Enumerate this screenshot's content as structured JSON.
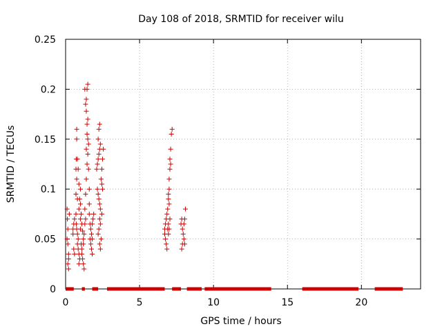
{
  "chart_data": {
    "type": "scatter",
    "title": "Day 108 of 2018, SRMTID for receiver wilu",
    "xlabel": "GPS time / hours",
    "ylabel": "SRMTID / TECUs",
    "xlim": [
      0,
      24
    ],
    "ylim": [
      0,
      0.25
    ],
    "xticks": [
      0,
      5,
      10,
      15,
      20
    ],
    "yticks": [
      0,
      0.05,
      0.1,
      0.15,
      0.2,
      0.25
    ],
    "xtick_labels": [
      "0",
      "5",
      "10",
      "15",
      "20"
    ],
    "ytick_labels": [
      "0",
      "0.05",
      "0.1",
      "0.15",
      "0.2",
      "0.25"
    ],
    "grid": true,
    "marker": "+",
    "color": "#cc0000",
    "zero_value_segments": [
      [
        0.0,
        0.55
      ],
      [
        1.1,
        1.3
      ],
      [
        1.8,
        2.2
      ],
      [
        2.8,
        6.7
      ],
      [
        7.2,
        7.8
      ],
      [
        8.2,
        9.2
      ],
      [
        9.4,
        13.9
      ],
      [
        16.0,
        19.8
      ],
      [
        20.9,
        22.8
      ]
    ],
    "points": [
      [
        0.1,
        0.08
      ],
      [
        0.12,
        0.07
      ],
      [
        0.15,
        0.06
      ],
      [
        0.1,
        0.05
      ],
      [
        0.15,
        0.045
      ],
      [
        0.2,
        0.035
      ],
      [
        0.2,
        0.03
      ],
      [
        0.15,
        0.025
      ],
      [
        0.2,
        0.02
      ],
      [
        0.25,
        0.075
      ],
      [
        0.5,
        0.06
      ],
      [
        0.55,
        0.065
      ],
      [
        0.6,
        0.07
      ],
      [
        0.5,
        0.055
      ],
      [
        0.55,
        0.04
      ],
      [
        0.6,
        0.035
      ],
      [
        0.7,
        0.12
      ],
      [
        0.72,
        0.13
      ],
      [
        0.75,
        0.11
      ],
      [
        0.7,
        0.095
      ],
      [
        0.75,
        0.16
      ],
      [
        0.8,
        0.09
      ],
      [
        0.7,
        0.075
      ],
      [
        0.72,
        0.065
      ],
      [
        0.75,
        0.06
      ],
      [
        0.8,
        0.055
      ],
      [
        0.85,
        0.05
      ],
      [
        0.8,
        0.045
      ],
      [
        0.85,
        0.04
      ],
      [
        0.9,
        0.035
      ],
      [
        0.95,
        0.03
      ],
      [
        0.9,
        0.025
      ],
      [
        1.0,
        0.07
      ],
      [
        1.0,
        0.06
      ],
      [
        0.95,
        0.09
      ],
      [
        1.0,
        0.1
      ],
      [
        1.05,
        0.045
      ],
      [
        1.1,
        0.04
      ],
      [
        1.1,
        0.035
      ],
      [
        1.15,
        0.03
      ],
      [
        1.2,
        0.025
      ],
      [
        1.25,
        0.02
      ],
      [
        0.75,
        0.15
      ],
      [
        0.8,
        0.13
      ],
      [
        0.85,
        0.12
      ],
      [
        0.9,
        0.105
      ],
      [
        0.9,
        0.08
      ],
      [
        1.0,
        0.085
      ],
      [
        1.05,
        0.075
      ],
      [
        1.1,
        0.065
      ],
      [
        1.15,
        0.058
      ],
      [
        1.2,
        0.05
      ],
      [
        1.2,
        0.045
      ],
      [
        1.25,
        0.055
      ],
      [
        1.3,
        0.065
      ],
      [
        1.35,
        0.07
      ],
      [
        1.3,
        0.08
      ],
      [
        1.35,
        0.095
      ],
      [
        1.4,
        0.11
      ],
      [
        1.45,
        0.125
      ],
      [
        1.4,
        0.14
      ],
      [
        1.45,
        0.155
      ],
      [
        1.5,
        0.17
      ],
      [
        1.35,
        0.185
      ],
      [
        1.4,
        0.19
      ],
      [
        1.45,
        0.2
      ],
      [
        1.5,
        0.205
      ],
      [
        1.4,
        0.178
      ],
      [
        1.45,
        0.165
      ],
      [
        1.5,
        0.15
      ],
      [
        1.55,
        0.145
      ],
      [
        1.5,
        0.135
      ],
      [
        1.55,
        0.12
      ],
      [
        1.6,
        0.1
      ],
      [
        1.6,
        0.085
      ],
      [
        1.3,
        0.2
      ],
      [
        1.6,
        0.075
      ],
      [
        1.65,
        0.065
      ],
      [
        1.7,
        0.06
      ],
      [
        1.75,
        0.055
      ],
      [
        1.8,
        0.05
      ],
      [
        1.7,
        0.045
      ],
      [
        1.75,
        0.04
      ],
      [
        1.8,
        0.035
      ],
      [
        1.65,
        0.05
      ],
      [
        1.8,
        0.065
      ],
      [
        1.85,
        0.07
      ],
      [
        1.9,
        0.075
      ],
      [
        2.1,
        0.12
      ],
      [
        2.15,
        0.125
      ],
      [
        2.2,
        0.13
      ],
      [
        2.25,
        0.135
      ],
      [
        2.3,
        0.14
      ],
      [
        2.35,
        0.145
      ],
      [
        2.2,
        0.15
      ],
      [
        2.25,
        0.16
      ],
      [
        2.3,
        0.165
      ],
      [
        2.15,
        0.1
      ],
      [
        2.2,
        0.095
      ],
      [
        2.25,
        0.09
      ],
      [
        2.3,
        0.085
      ],
      [
        2.35,
        0.08
      ],
      [
        2.4,
        0.11
      ],
      [
        2.45,
        0.105
      ],
      [
        2.5,
        0.1
      ],
      [
        2.45,
        0.12
      ],
      [
        2.5,
        0.13
      ],
      [
        2.55,
        0.14
      ],
      [
        2.3,
        0.07
      ],
      [
        2.35,
        0.065
      ],
      [
        2.25,
        0.06
      ],
      [
        2.2,
        0.055
      ],
      [
        2.3,
        0.045
      ],
      [
        2.35,
        0.04
      ],
      [
        2.4,
        0.05
      ],
      [
        2.45,
        0.075
      ],
      [
        6.7,
        0.06
      ],
      [
        6.75,
        0.065
      ],
      [
        6.8,
        0.07
      ],
      [
        6.85,
        0.075
      ],
      [
        6.7,
        0.055
      ],
      [
        6.75,
        0.05
      ],
      [
        6.8,
        0.045
      ],
      [
        6.85,
        0.04
      ],
      [
        6.9,
        0.06
      ],
      [
        6.95,
        0.065
      ],
      [
        6.9,
        0.08
      ],
      [
        6.95,
        0.09
      ],
      [
        7.0,
        0.1
      ],
      [
        7.0,
        0.11
      ],
      [
        7.05,
        0.12
      ],
      [
        7.1,
        0.125
      ],
      [
        7.05,
        0.13
      ],
      [
        7.1,
        0.14
      ],
      [
        7.15,
        0.155
      ],
      [
        7.2,
        0.16
      ],
      [
        6.95,
        0.095
      ],
      [
        7.0,
        0.085
      ],
      [
        7.05,
        0.07
      ],
      [
        7.0,
        0.06
      ],
      [
        6.95,
        0.055
      ],
      [
        7.8,
        0.065
      ],
      [
        7.85,
        0.07
      ],
      [
        7.9,
        0.06
      ],
      [
        7.95,
        0.055
      ],
      [
        8.0,
        0.05
      ],
      [
        8.05,
        0.045
      ],
      [
        7.9,
        0.045
      ],
      [
        7.85,
        0.04
      ],
      [
        8.0,
        0.065
      ],
      [
        8.05,
        0.07
      ],
      [
        8.1,
        0.08
      ]
    ]
  }
}
